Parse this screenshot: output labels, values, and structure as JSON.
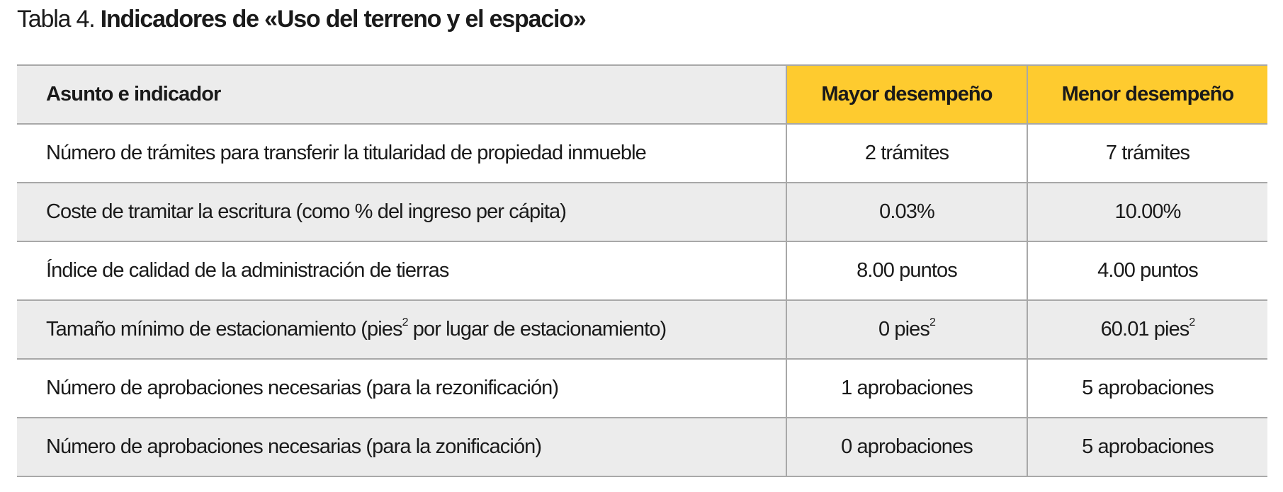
{
  "caption": {
    "label": "Tabla 4.",
    "title": "Indicadores de «Uso del terreno y el espacio»"
  },
  "table": {
    "headers": [
      "Asunto e indicador",
      "Mayor desempeño",
      "Menor desempeño"
    ],
    "rows": [
      {
        "indicator": "Número de trámites para transferir la titularidad de propiedad inmueble",
        "best": "2 trámites",
        "worst": "7 trámites"
      },
      {
        "indicator": "Coste de tramitar la escritura (como % del ingreso per cápita)",
        "best": "0.03%",
        "worst": "10.00%"
      },
      {
        "indicator": "Índice de calidad de la administración de tierras",
        "best": "8.00 puntos",
        "worst": "4.00 puntos"
      },
      {
        "indicator_pre": "Tamaño mínimo de estacionamiento (pies",
        "indicator_sup": "2",
        "indicator_post": " por lugar de estacionamiento)",
        "best_pre": "0 pies",
        "best_sup": "2",
        "worst_pre": "60.01 pies",
        "worst_sup": "2"
      },
      {
        "indicator": "Número de aprobaciones necesarias (para la rezonificación)",
        "best": "1 aprobaciones",
        "worst": "5 aprobaciones"
      },
      {
        "indicator": "Número de aprobaciones necesarias (para la zonificación)",
        "best": "0 aprobaciones",
        "worst": "5 aprobaciones"
      }
    ]
  }
}
